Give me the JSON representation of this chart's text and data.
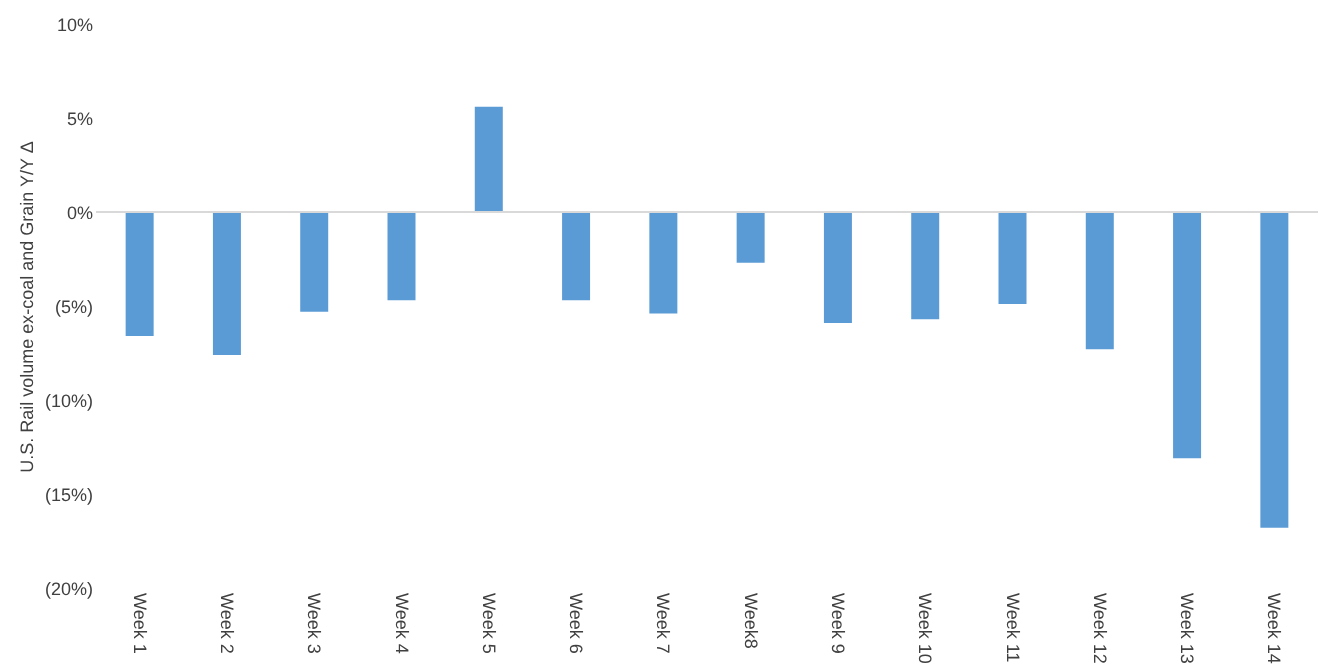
{
  "chart_data": {
    "type": "bar",
    "ylabel": "U.S. Rail volume ex-coal and Grain Y/Y Δ",
    "categories": [
      "Week 1",
      "Week 2",
      "Week 3",
      "Week 4",
      "Week 5",
      "Week 6",
      "Week 7",
      "Week8",
      "Week 9",
      "Week 10",
      "Week 11",
      "Week 12",
      "Week 13",
      "Week 14"
    ],
    "values": [
      -6.6,
      -7.6,
      -5.3,
      -4.7,
      5.6,
      -4.7,
      -5.4,
      -2.7,
      -5.9,
      -5.7,
      -4.9,
      -7.3,
      -13.1,
      -16.8
    ],
    "color": "#5b9bd5",
    "ylim": [
      -20,
      10
    ],
    "yticks": [
      {
        "value": -20,
        "label": "(20%)"
      },
      {
        "value": -15,
        "label": "(15%)"
      },
      {
        "value": -10,
        "label": "(10%)"
      },
      {
        "value": -5,
        "label": "(5%)"
      },
      {
        "value": 0,
        "label": "0%"
      },
      {
        "value": 5,
        "label": "5%"
      },
      {
        "value": 10,
        "label": "10%"
      }
    ],
    "ref_lines": [
      {
        "axis": "y",
        "value": 0,
        "color": "#d9d9d9"
      }
    ],
    "grid": false
  }
}
